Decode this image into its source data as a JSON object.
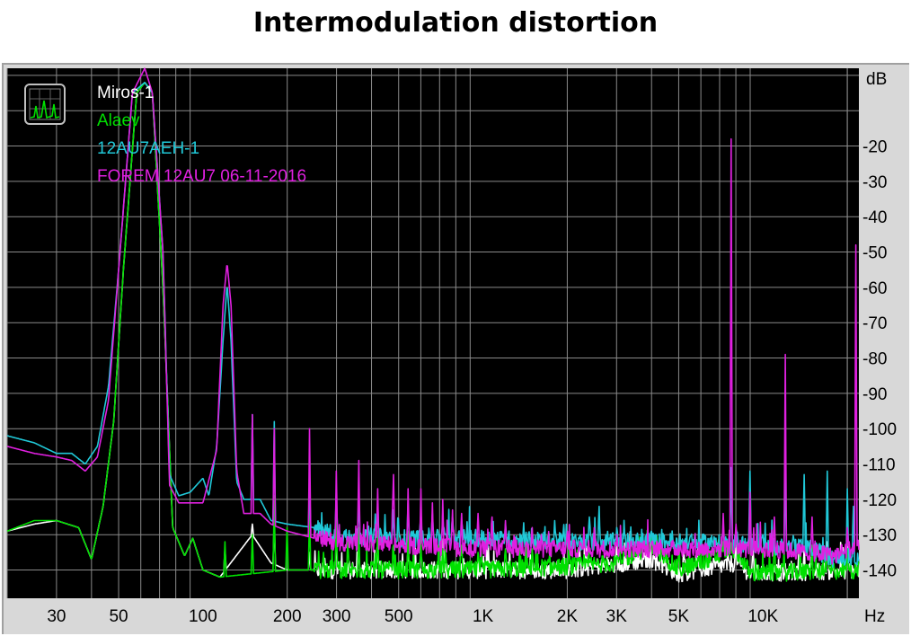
{
  "title": "Intermodulation distortion",
  "chart_data": {
    "type": "line",
    "title": "Intermodulation distortion",
    "xlabel": "Hz",
    "ylabel": "dB",
    "x_scale": "log",
    "xlim": [
      20,
      22000
    ],
    "ylim": [
      -148,
      2
    ],
    "grid": true,
    "legend": "top-left",
    "background": "#000000",
    "x_ticks": [
      {
        "value": 30,
        "label": "30"
      },
      {
        "value": 50,
        "label": "50"
      },
      {
        "value": 100,
        "label": "100"
      },
      {
        "value": 200,
        "label": "200"
      },
      {
        "value": 300,
        "label": "300"
      },
      {
        "value": 500,
        "label": "500"
      },
      {
        "value": 1000,
        "label": "1K"
      },
      {
        "value": 2000,
        "label": "2K"
      },
      {
        "value": 3000,
        "label": "3K"
      },
      {
        "value": 5000,
        "label": "5K"
      },
      {
        "value": 10000,
        "label": "10K"
      }
    ],
    "y_ticks": [
      -20,
      -30,
      -40,
      -50,
      -60,
      -70,
      -80,
      -90,
      -100,
      -110,
      -120,
      -130,
      -140
    ],
    "series": [
      {
        "name": "Miros-1",
        "color": "#ffffff",
        "floor": -140,
        "points": [
          [
            20,
            -129
          ],
          [
            25,
            -127
          ],
          [
            30,
            -126
          ],
          [
            36,
            -128
          ],
          [
            40,
            -137
          ],
          [
            44,
            -122
          ],
          [
            48,
            -98
          ],
          [
            52,
            -55
          ],
          [
            58,
            -5
          ],
          [
            62,
            -2
          ],
          [
            66,
            -5
          ],
          [
            72,
            -60
          ],
          [
            78,
            -128
          ],
          [
            86,
            -136
          ],
          [
            92,
            -131
          ],
          [
            100,
            -140
          ],
          [
            115,
            -142
          ],
          [
            150,
            -130
          ],
          [
            175,
            -138
          ],
          [
            200,
            -140
          ],
          [
            500,
            -140
          ],
          [
            1000,
            -140
          ],
          [
            2000,
            -140
          ],
          [
            4000,
            -137
          ],
          [
            5000,
            -141
          ],
          [
            8000,
            -138
          ],
          [
            9000,
            -141
          ],
          [
            22000,
            -140
          ]
        ],
        "spikes": [
          [
            120,
            -134
          ],
          [
            150,
            -127
          ],
          [
            180,
            -125
          ],
          [
            240,
            -135
          ],
          [
            300,
            -132
          ],
          [
            360,
            -134
          ],
          [
            420,
            -135
          ],
          [
            540,
            -136
          ],
          [
            3000,
            -132
          ],
          [
            4300,
            -132
          ],
          [
            5200,
            -133
          ],
          [
            8000,
            -133
          ],
          [
            9200,
            -134
          ],
          [
            14000,
            -134
          ],
          [
            17000,
            -132
          ],
          [
            20000,
            -134
          ]
        ]
      },
      {
        "name": "Alaev",
        "color": "#00e000",
        "floor": -141,
        "points": [
          [
            20,
            -129
          ],
          [
            25,
            -126
          ],
          [
            30,
            -126
          ],
          [
            36,
            -128
          ],
          [
            40,
            -137
          ],
          [
            44,
            -122
          ],
          [
            48,
            -98
          ],
          [
            52,
            -55
          ],
          [
            58,
            -5
          ],
          [
            62,
            -2
          ],
          [
            66,
            -5
          ],
          [
            72,
            -60
          ],
          [
            78,
            -128
          ],
          [
            86,
            -136
          ],
          [
            92,
            -131
          ],
          [
            100,
            -140
          ],
          [
            115,
            -142
          ],
          [
            200,
            -140
          ],
          [
            500,
            -140
          ],
          [
            1000,
            -140
          ],
          [
            2000,
            -139
          ],
          [
            3000,
            -138
          ],
          [
            4000,
            -133
          ],
          [
            5000,
            -140
          ],
          [
            8000,
            -134
          ],
          [
            9000,
            -141
          ],
          [
            22000,
            -140
          ]
        ],
        "spikes": [
          [
            120,
            -132
          ],
          [
            150,
            -130
          ],
          [
            180,
            -119
          ],
          [
            200,
            -128
          ],
          [
            240,
            -123
          ],
          [
            270,
            -135
          ],
          [
            300,
            -126
          ],
          [
            330,
            -132
          ],
          [
            360,
            -128
          ],
          [
            420,
            -129
          ],
          [
            480,
            -133
          ],
          [
            540,
            -129
          ],
          [
            600,
            -133
          ],
          [
            720,
            -134
          ],
          [
            840,
            -133
          ],
          [
            960,
            -135
          ],
          [
            1200,
            -134
          ],
          [
            1500,
            -134
          ],
          [
            3000,
            -136
          ],
          [
            5000,
            -134
          ],
          [
            7200,
            -132
          ],
          [
            11000,
            -134
          ],
          [
            15000,
            -133
          ],
          [
            17000,
            -134
          ],
          [
            20000,
            -134
          ]
        ]
      },
      {
        "name": "12AU7AEH-1",
        "color": "#20c8d8",
        "floor": -132,
        "points": [
          [
            20,
            -102
          ],
          [
            25,
            -104
          ],
          [
            30,
            -107
          ],
          [
            34,
            -107
          ],
          [
            38,
            -110
          ],
          [
            42,
            -105
          ],
          [
            46,
            -88
          ],
          [
            50,
            -55
          ],
          [
            56,
            -5
          ],
          [
            62,
            -2
          ],
          [
            66,
            -5
          ],
          [
            72,
            -50
          ],
          [
            76,
            -113
          ],
          [
            82,
            -119
          ],
          [
            90,
            -118
          ],
          [
            100,
            -114
          ],
          [
            105,
            -119
          ],
          [
            112,
            -105
          ],
          [
            118,
            -75
          ],
          [
            122,
            -59
          ],
          [
            126,
            -75
          ],
          [
            132,
            -115
          ],
          [
            140,
            -120
          ],
          [
            160,
            -120
          ],
          [
            175,
            -126
          ],
          [
            200,
            -127
          ],
          [
            250,
            -128
          ],
          [
            300,
            -130
          ],
          [
            500,
            -131
          ],
          [
            1000,
            -131
          ],
          [
            2000,
            -132
          ],
          [
            5000,
            -132
          ],
          [
            10000,
            -133
          ],
          [
            15000,
            -134
          ],
          [
            18000,
            -137
          ],
          [
            22000,
            -136
          ]
        ],
        "spikes": [
          [
            150,
            -96
          ],
          [
            180,
            -98
          ],
          [
            200,
            -127
          ],
          [
            240,
            -116
          ],
          [
            300,
            -118
          ],
          [
            360,
            -119
          ],
          [
            420,
            -121
          ],
          [
            480,
            -123
          ],
          [
            540,
            -121
          ],
          [
            600,
            -124
          ],
          [
            660,
            -124
          ],
          [
            720,
            -124
          ],
          [
            780,
            -125
          ],
          [
            840,
            -126
          ],
          [
            1200,
            -127
          ],
          [
            1400,
            -128
          ],
          [
            1800,
            -126
          ],
          [
            2400,
            -125
          ],
          [
            2600,
            -122
          ],
          [
            3000,
            -128
          ],
          [
            4000,
            -129
          ],
          [
            7200,
            -128
          ],
          [
            7700,
            -111
          ],
          [
            9000,
            -112
          ],
          [
            10000,
            -130
          ],
          [
            12000,
            -110
          ],
          [
            14000,
            -113
          ],
          [
            17000,
            -112
          ],
          [
            20000,
            -117
          ],
          [
            21000,
            -122
          ]
        ]
      },
      {
        "name": "FOREM 12AU7 06-11-2016",
        "color": "#e020e0",
        "floor": -134,
        "points": [
          [
            20,
            -105
          ],
          [
            25,
            -107
          ],
          [
            30,
            -108
          ],
          [
            34,
            -109
          ],
          [
            38,
            -112
          ],
          [
            42,
            -108
          ],
          [
            46,
            -92
          ],
          [
            50,
            -55
          ],
          [
            56,
            -5
          ],
          [
            62,
            2
          ],
          [
            66,
            -5
          ],
          [
            72,
            -50
          ],
          [
            76,
            -116
          ],
          [
            82,
            -121
          ],
          [
            90,
            -121
          ],
          [
            100,
            -121
          ],
          [
            112,
            -106
          ],
          [
            118,
            -65
          ],
          [
            122,
            -53
          ],
          [
            126,
            -65
          ],
          [
            132,
            -112
          ],
          [
            140,
            -124
          ],
          [
            160,
            -124
          ],
          [
            175,
            -127
          ],
          [
            200,
            -129
          ],
          [
            250,
            -131
          ],
          [
            300,
            -132
          ],
          [
            500,
            -133
          ],
          [
            1000,
            -134
          ],
          [
            2000,
            -134
          ],
          [
            5000,
            -134
          ],
          [
            10000,
            -134
          ],
          [
            15000,
            -135
          ],
          [
            18000,
            -136
          ],
          [
            22000,
            -133
          ]
        ],
        "spikes": [
          [
            150,
            -96
          ],
          [
            180,
            -100
          ],
          [
            240,
            -100
          ],
          [
            300,
            -112
          ],
          [
            360,
            -109
          ],
          [
            420,
            -117
          ],
          [
            480,
            -113
          ],
          [
            540,
            -117
          ],
          [
            600,
            -117
          ],
          [
            660,
            -121
          ],
          [
            720,
            -120
          ],
          [
            780,
            -123
          ],
          [
            840,
            -124
          ],
          [
            960,
            -124
          ],
          [
            1080,
            -125
          ],
          [
            1200,
            -126
          ],
          [
            1500,
            -128
          ],
          [
            2000,
            -129
          ],
          [
            2500,
            -128
          ],
          [
            3000,
            -130
          ],
          [
            7200,
            -124
          ],
          [
            7700,
            -18
          ],
          [
            8000,
            -127
          ],
          [
            9000,
            -118
          ],
          [
            11000,
            -125
          ],
          [
            12000,
            -79
          ],
          [
            15000,
            -125
          ],
          [
            20000,
            -128
          ],
          [
            21500,
            -48
          ]
        ]
      }
    ]
  }
}
